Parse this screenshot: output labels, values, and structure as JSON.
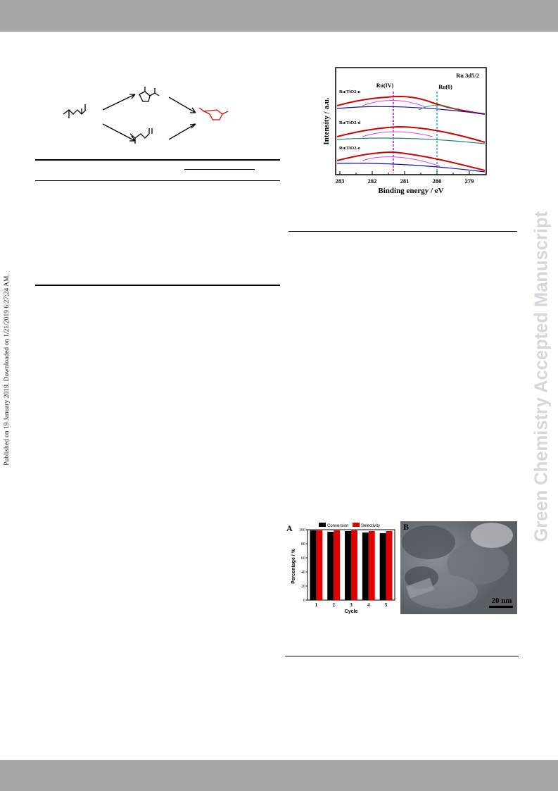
{
  "sidebar": {
    "published_note": "Published on 19 January 2019. Downloaded on 1/21/2019 6:27:24 AM.",
    "watermark": "Green Chemistry Accepted Manuscript"
  },
  "xps_figure": {
    "panel_label": "Ru 3d5/2",
    "peak_labels": {
      "ru4": "Ru(IV)",
      "ru0": "Ru(0)"
    },
    "sample_labels": [
      "Ru/TiO2-n",
      "Ru/TiO2-d",
      "Ru/TiO2-o"
    ],
    "xlabel": "Binding energy / eV",
    "ylabel": "Intensity / a.u.",
    "xticks": [
      "283",
      "282",
      "281",
      "280",
      "279"
    ]
  },
  "recycle_figure": {
    "panel_a_label": "A",
    "panel_b_label": "B",
    "legend": [
      "Conversion",
      "Selectivity"
    ],
    "ylabel": "Percentage / %",
    "xlabel": "Cycle",
    "yticks": [
      "0",
      "20",
      "40",
      "60",
      "80",
      "100"
    ],
    "scale_bar": "20 nm"
  },
  "chart_data": [
    {
      "type": "bar",
      "title": "",
      "xlabel": "Cycle",
      "ylabel": "Percentage / %",
      "categories": [
        "1",
        "2",
        "3",
        "4",
        "5"
      ],
      "series": [
        {
          "name": "Conversion",
          "values": [
            99,
            97,
            98,
            96,
            95
          ]
        },
        {
          "name": "Selectivity",
          "values": [
            99,
            99,
            99,
            98,
            98
          ]
        }
      ],
      "ylim": [
        0,
        100
      ],
      "legend": "top",
      "colors": {
        "Conversion": "#000000",
        "Selectivity": "#e00000"
      }
    }
  ]
}
